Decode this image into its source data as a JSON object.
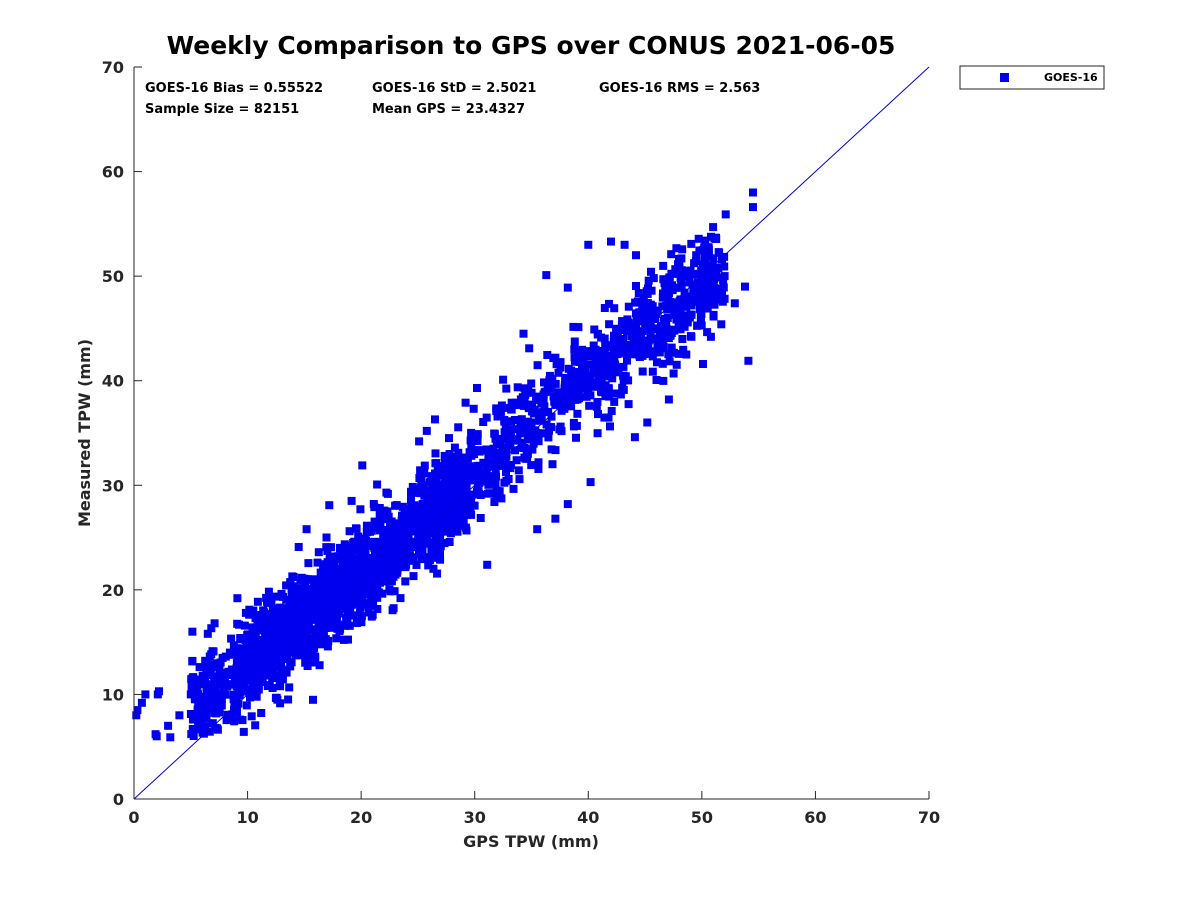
{
  "chart_data": {
    "type": "scatter",
    "title": "Weekly Comparison to GPS over CONUS 2021-06-05",
    "xlabel": "GPS TPW (mm)",
    "ylabel": "Measured TPW (mm)",
    "xlim": [
      0,
      70
    ],
    "ylim": [
      0,
      70
    ],
    "x_ticks": [
      "0",
      "10",
      "20",
      "30",
      "40",
      "50",
      "60",
      "70"
    ],
    "y_ticks": [
      "0",
      "10",
      "20",
      "30",
      "40",
      "50",
      "60",
      "70"
    ],
    "grid": false,
    "legend_position": "outside-top-right",
    "reference_line": {
      "from": [
        0,
        0
      ],
      "to": [
        70,
        70
      ],
      "color": "#0000dd"
    },
    "series": [
      {
        "name": "GOES-16",
        "color": "#0000ee",
        "marker": "square",
        "core_points": [
          [
            1,
            10
          ],
          [
            2,
            6
          ],
          [
            3,
            7
          ],
          [
            4,
            8
          ],
          [
            5,
            10
          ],
          [
            6,
            9
          ],
          [
            7,
            10
          ],
          [
            8,
            11
          ],
          [
            9,
            12
          ],
          [
            10,
            13
          ],
          [
            11,
            14
          ],
          [
            12,
            15
          ],
          [
            13,
            15
          ],
          [
            14,
            17
          ],
          [
            15,
            17
          ],
          [
            16,
            18
          ],
          [
            17,
            19
          ],
          [
            18,
            20
          ],
          [
            19,
            21
          ],
          [
            20,
            22
          ],
          [
            21,
            22
          ],
          [
            22,
            24
          ],
          [
            23,
            24
          ],
          [
            24,
            25
          ],
          [
            25,
            26
          ],
          [
            26,
            27
          ],
          [
            27,
            28
          ],
          [
            28,
            29
          ],
          [
            29,
            30
          ],
          [
            30,
            31
          ],
          [
            31,
            32
          ],
          [
            32,
            33
          ],
          [
            33,
            34
          ],
          [
            34,
            35
          ],
          [
            35,
            36
          ],
          [
            36,
            37
          ],
          [
            37,
            38
          ],
          [
            38,
            39
          ],
          [
            39,
            40
          ],
          [
            40,
            40
          ],
          [
            41,
            41
          ],
          [
            42,
            42
          ],
          [
            43,
            43
          ],
          [
            44,
            44
          ],
          [
            45,
            45
          ],
          [
            46,
            45
          ],
          [
            47,
            46
          ],
          [
            48,
            47
          ],
          [
            49,
            48
          ],
          [
            50,
            49
          ],
          [
            51,
            50
          ],
          [
            52,
            50
          ]
        ],
        "outlier_points": [
          [
            0.2,
            8.0
          ],
          [
            0.3,
            8.5
          ],
          [
            0.7,
            9.2
          ],
          [
            2.1,
            10.0
          ],
          [
            2.2,
            10.3
          ],
          [
            1.9,
            6.2
          ],
          [
            3.2,
            5.9
          ],
          [
            6.5,
            15.8
          ],
          [
            7.1,
            16.8
          ],
          [
            9.1,
            19.2
          ],
          [
            14.5,
            24.1
          ],
          [
            15.2,
            25.8
          ],
          [
            17.2,
            28.1
          ],
          [
            20.1,
            31.9
          ],
          [
            25.1,
            34.2
          ],
          [
            26.5,
            36.3
          ],
          [
            29.2,
            37.9
          ],
          [
            30.2,
            39.3
          ],
          [
            31.9,
            37.1
          ],
          [
            32.5,
            40.1
          ],
          [
            34.3,
            44.5
          ],
          [
            34.8,
            43.1
          ],
          [
            31.1,
            22.4
          ],
          [
            28.2,
            27.1
          ],
          [
            35.5,
            25.8
          ],
          [
            37.1,
            26.8
          ],
          [
            38.2,
            28.2
          ],
          [
            40.2,
            30.3
          ],
          [
            44.1,
            34.6
          ],
          [
            45.2,
            36.0
          ],
          [
            47.1,
            38.2
          ],
          [
            50.1,
            41.6
          ],
          [
            50.8,
            44.2
          ],
          [
            54.1,
            41.9
          ],
          [
            54.5,
            58.0
          ],
          [
            54.5,
            56.6
          ],
          [
            52.1,
            55.9
          ],
          [
            51.1,
            53.6
          ],
          [
            50.3,
            53.4
          ],
          [
            47.3,
            52.1
          ],
          [
            44.2,
            52.0
          ],
          [
            43.2,
            53.0
          ],
          [
            40.0,
            53.0
          ],
          [
            38.2,
            48.9
          ],
          [
            36.3,
            50.1
          ],
          [
            42.0,
            53.3
          ],
          [
            53.8,
            49.0
          ],
          [
            48.2,
            51.7
          ],
          [
            52.9,
            47.4
          ]
        ]
      }
    ],
    "stats": [
      "GOES-16 Bias = 0.55522",
      "GOES-16 StD = 2.5021",
      "GOES-16 RMS = 2.563",
      "Sample Size = 82151",
      "Mean GPS = 23.4327"
    ]
  }
}
